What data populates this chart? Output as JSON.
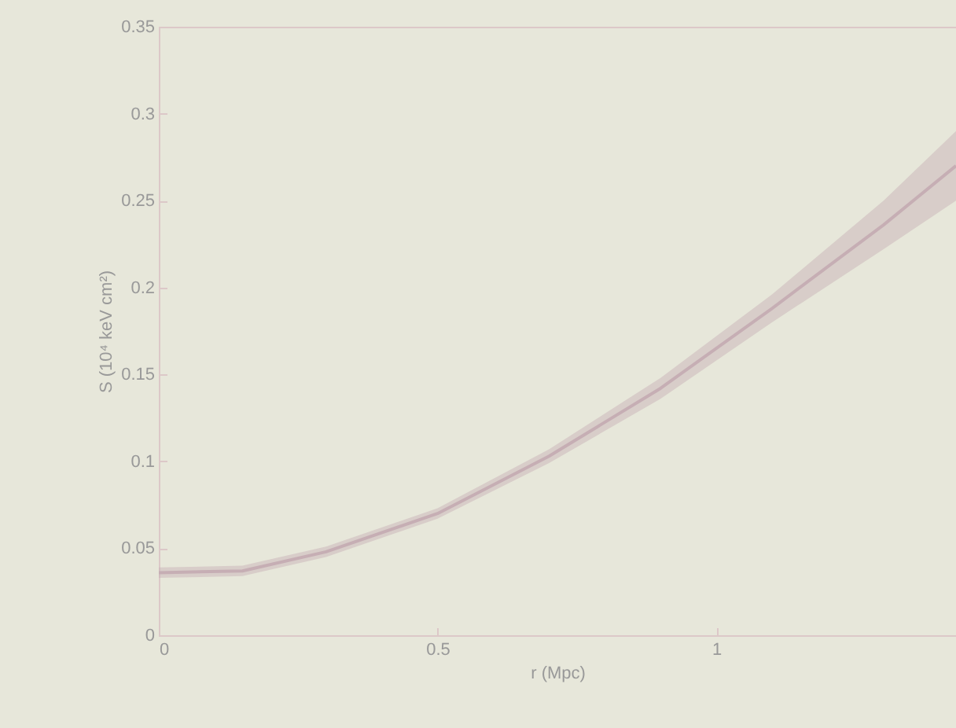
{
  "chart_data": {
    "type": "line",
    "xlabel": "r (Mpc)",
    "ylabel": "S (10⁴ keV cm²)",
    "x": [
      0,
      0.15,
      0.3,
      0.5,
      0.7,
      0.9,
      1.1,
      1.3,
      1.43
    ],
    "series": [
      {
        "color": "#c6aeb4",
        "values": [
          0.036,
          0.037,
          0.048,
          0.07,
          0.103,
          0.142,
          0.188,
          0.236,
          0.27
        ],
        "lower": [
          0.033,
          0.034,
          0.045,
          0.067,
          0.099,
          0.136,
          0.18,
          0.222,
          0.25
        ],
        "upper": [
          0.039,
          0.04,
          0.051,
          0.073,
          0.107,
          0.148,
          0.196,
          0.25,
          0.29
        ]
      }
    ],
    "xlim": [
      0,
      1.43
    ],
    "xticks": [
      0,
      0.5,
      1
    ],
    "ylim": [
      0,
      0.35
    ],
    "yticks": [
      0,
      0.05,
      0.1,
      0.15,
      0.2,
      0.25,
      0.3,
      0.35
    ],
    "grid": false
  }
}
